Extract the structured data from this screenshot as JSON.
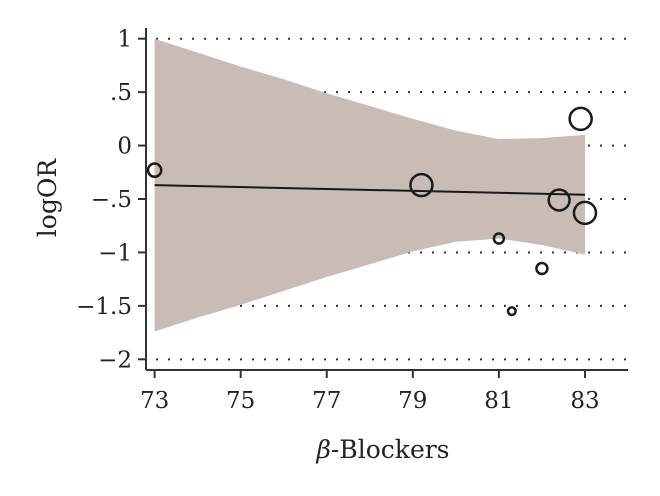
{
  "chart_data": {
    "type": "scatter",
    "xlabel": "β-Blockers",
    "ylabel": "logOR",
    "xlim": [
      72.8,
      84.0
    ],
    "ylim": [
      -2.1,
      1.1
    ],
    "x_ticks": [
      73,
      75,
      77,
      79,
      81,
      83
    ],
    "x_tick_labels": [
      "73",
      "75",
      "77",
      "79",
      "81",
      "83"
    ],
    "y_ticks": [
      1,
      0.5,
      0,
      -0.5,
      -1,
      -1.5,
      -2
    ],
    "y_tick_labels": [
      "1",
      ".5",
      "0",
      "−.5",
      "−1",
      "−1.5",
      "−2"
    ],
    "grid": "horizontal dotted",
    "points": [
      {
        "x": 73.0,
        "y": -0.23,
        "weight": 1.2
      },
      {
        "x": 79.2,
        "y": -0.37,
        "weight": 2.0
      },
      {
        "x": 81.0,
        "y": -0.87,
        "weight": 0.9
      },
      {
        "x": 81.3,
        "y": -1.55,
        "weight": 0.7
      },
      {
        "x": 82.0,
        "y": -1.15,
        "weight": 1.0
      },
      {
        "x": 82.4,
        "y": -0.51,
        "weight": 1.9
      },
      {
        "x": 82.9,
        "y": 0.25,
        "weight": 2.0
      },
      {
        "x": 83.0,
        "y": -0.63,
        "weight": 2.0
      }
    ],
    "fit_line": {
      "x": [
        73.0,
        83.0
      ],
      "y": [
        -0.37,
        -0.46
      ]
    },
    "confidence_band": {
      "x": [
        73.0,
        74.0,
        75.0,
        76.0,
        77.0,
        78.0,
        79.0,
        80.0,
        81.0,
        82.0,
        83.0
      ],
      "upper": [
        1.0,
        0.87,
        0.74,
        0.62,
        0.49,
        0.37,
        0.25,
        0.14,
        0.06,
        0.07,
        0.1
      ],
      "lower": [
        -1.74,
        -1.61,
        -1.49,
        -1.36,
        -1.23,
        -1.11,
        -0.99,
        -0.9,
        -0.87,
        -0.93,
        -1.02
      ]
    },
    "colors": {
      "band": "#c9bcb5",
      "line": "#1a1a1a",
      "point": "#1a1a1a"
    }
  }
}
